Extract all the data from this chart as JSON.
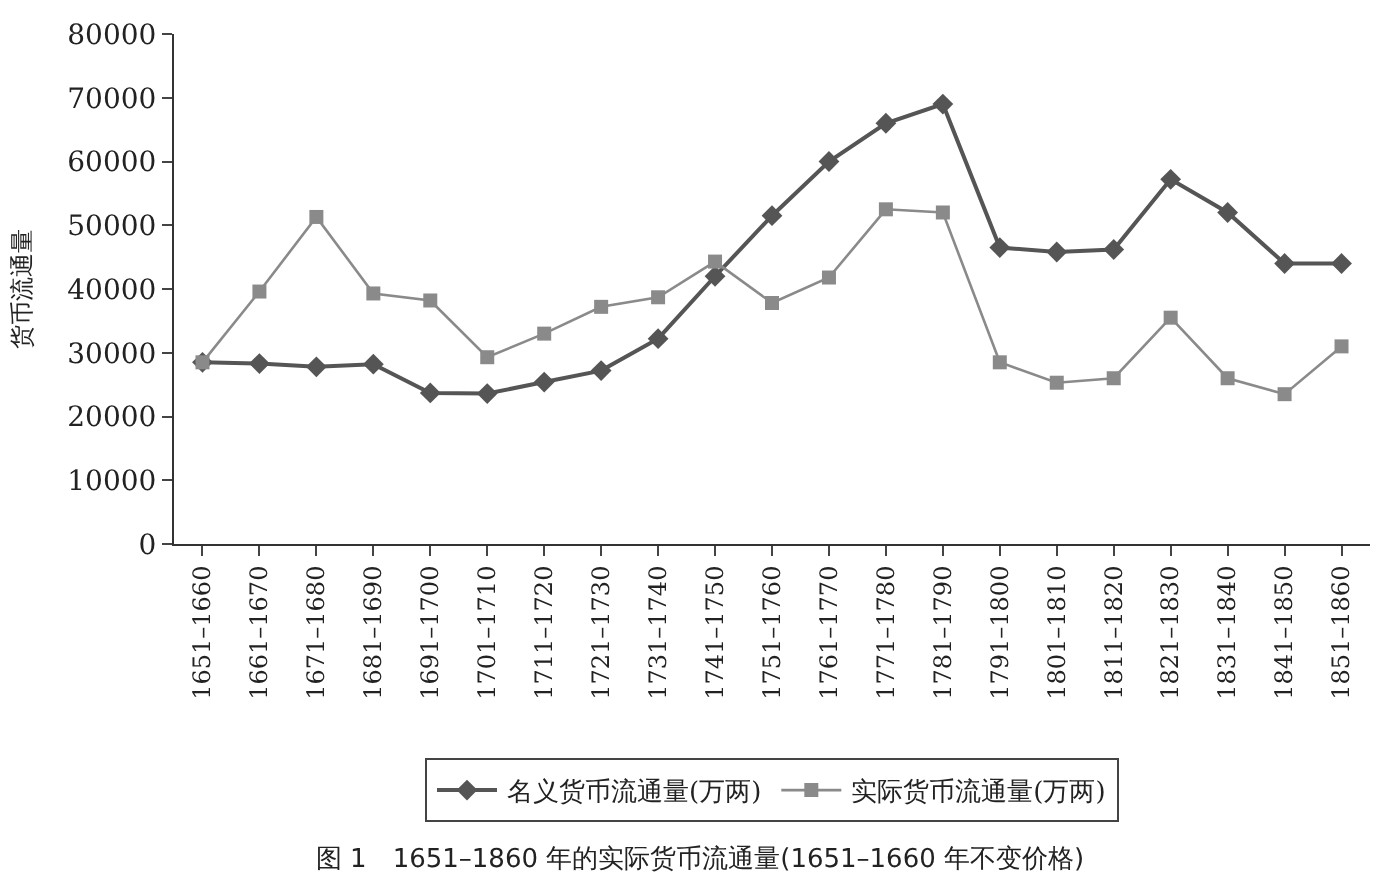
{
  "chart_data": {
    "type": "line",
    "title": "图 1　1651–1860 年的实际货币流通量(1651–1660 年不变价格)",
    "ylabel": "货币流通量",
    "categories": [
      "1651–1660",
      "1661–1670",
      "1671–1680",
      "1681–1690",
      "1691–1700",
      "1701–1710",
      "1711–1720",
      "1721–1730",
      "1731–1740",
      "1741–1750",
      "1751–1760",
      "1761–1770",
      "1771–1780",
      "1781–1790",
      "1791–1800",
      "1801–1810",
      "1811–1820",
      "1821–1830",
      "1831–1840",
      "1841–1850",
      "1851–1860"
    ],
    "series": [
      {
        "name": "名义货币流通量(万两)",
        "color": "#555555",
        "marker": "diamond",
        "values": [
          28500,
          28300,
          27800,
          28200,
          23700,
          23600,
          25400,
          27200,
          32200,
          42000,
          51500,
          60000,
          66000,
          69000,
          46500,
          45800,
          46200,
          57200,
          52000,
          44000,
          44000
        ]
      },
      {
        "name": "实际货币流通量(万两)",
        "color": "#8a8a8a",
        "marker": "square",
        "values": [
          28500,
          39600,
          51300,
          39300,
          38200,
          29300,
          33000,
          37200,
          38700,
          44300,
          37800,
          41800,
          52500,
          52000,
          28500,
          25300,
          26000,
          35500,
          26000,
          23500,
          31000
        ]
      }
    ],
    "ylim": [
      0,
      80000
    ],
    "yticks": [
      0,
      10000,
      20000,
      30000,
      40000,
      50000,
      60000,
      70000,
      80000
    ],
    "legend": "bottom"
  }
}
